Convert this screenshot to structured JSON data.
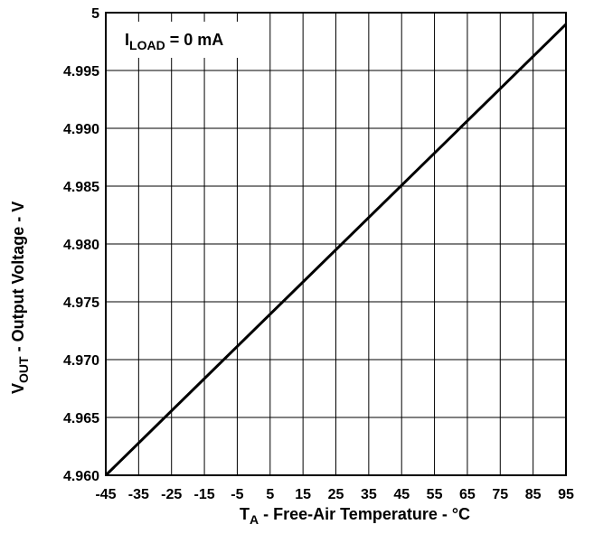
{
  "chart_data": {
    "type": "line",
    "xlabel": {
      "main": "T",
      "sub": "A",
      "rest": " - Free-Air Temperature - °C"
    },
    "ylabel": {
      "main": "V",
      "sub": "OUT",
      "rest": " - Output Voltage - V"
    },
    "annotation": {
      "main": "I",
      "sub": "LOAD",
      "rest": " = 0 mA"
    },
    "xlim": [
      -45,
      95
    ],
    "ylim": [
      4.96,
      5.0
    ],
    "x_ticks": [
      -45,
      -35,
      -25,
      -15,
      -5,
      5,
      15,
      25,
      35,
      45,
      55,
      65,
      75,
      85,
      95
    ],
    "x_tick_labels": [
      "-45",
      "-35",
      "-25",
      "-15",
      "-5",
      "5",
      "15",
      "25",
      "35",
      "45",
      "55",
      "65",
      "75",
      "85",
      "95"
    ],
    "y_ticks": [
      4.96,
      4.965,
      4.97,
      4.975,
      4.98,
      4.985,
      4.99,
      4.995,
      5.0
    ],
    "y_tick_labels": [
      "4.960",
      "4.965",
      "4.970",
      "4.975",
      "4.980",
      "4.985",
      "4.990",
      "4.995",
      "5"
    ],
    "grid": true,
    "series": [
      {
        "x": [
          -45,
          95
        ],
        "y": [
          4.96,
          4.999
        ],
        "color": "#000000"
      }
    ]
  }
}
